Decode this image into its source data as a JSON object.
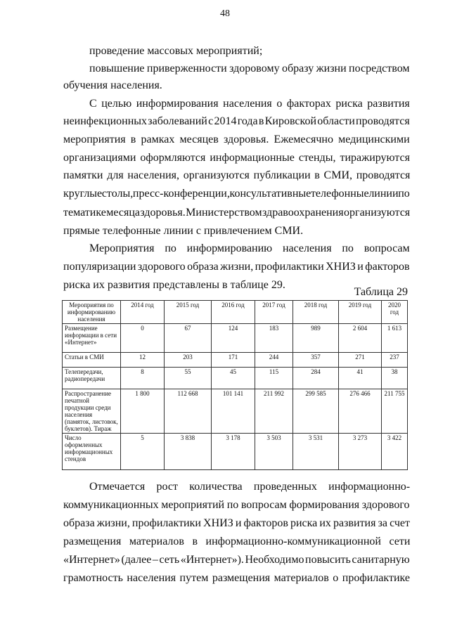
{
  "page_number": "48",
  "lines_top": [
    {
      "text": "проведение массовых мероприятий;",
      "indent": true,
      "justify": false
    },
    {
      "text": "повышение приверженности здоровому образу жизни посредством",
      "indent": true,
      "justify": true
    },
    {
      "text": "обучения населения.",
      "indent": false,
      "justify": false
    },
    {
      "text": "С целью информирования населения о факторах риска развития",
      "indent": true,
      "justify": true
    },
    {
      "text": "неинфекционных заболеваний с 2014 года в Кировской области проводятся",
      "indent": false,
      "justify": true
    },
    {
      "text": "мероприятия в рамках месяцев здоровья. Ежемесячно медицинскими",
      "indent": false,
      "justify": true
    },
    {
      "text": "организациями оформляются информационные стенды, тиражируются",
      "indent": false,
      "justify": true
    },
    {
      "text": "памятки для населения, организуются публикации в СМИ, проводятся",
      "indent": false,
      "justify": true
    },
    {
      "text": "круглые столы, пресс-конференции, консультативные телефонные линии по",
      "indent": false,
      "justify": true
    },
    {
      "text": "тематике месяца здоровья. Министерством здравоохранения организуются",
      "indent": false,
      "justify": true
    },
    {
      "text": "прямые телефонные линии с привлечением СМИ.",
      "indent": false,
      "justify": false
    },
    {
      "text": "Мероприятия по информированию населения по вопросам",
      "indent": true,
      "justify": true
    },
    {
      "text": "популяризации здорового образа жизни, профилактики ХНИЗ и факторов",
      "indent": false,
      "justify": true
    },
    {
      "text": "риска их развития представлены в таблице 29.",
      "indent": false,
      "justify": false
    }
  ],
  "table_caption": "Таблица 29",
  "table": {
    "headers": [
      "Мероприятия по информированию населения",
      "2014 год",
      "2015 год",
      "2016 год",
      "2017 год",
      "2018 год",
      "2019 год",
      "2020 год"
    ],
    "rows": [
      {
        "label": "Размещение информации в сети «Интернет»",
        "values": [
          "0",
          "67",
          "124",
          "183",
          "989",
          "2 604",
          "1 613"
        ]
      },
      {
        "label": "Статьи в СМИ",
        "values": [
          "12",
          "203",
          "171",
          "244",
          "357",
          "271",
          "237"
        ]
      },
      {
        "label": "Телепередачи, радиопередачи",
        "values": [
          "8",
          "55",
          "45",
          "115",
          "284",
          "41",
          "38"
        ]
      },
      {
        "label": "Распространение печатной продукции среди населения (памяток, листовок, буклетов). Тираж",
        "values": [
          "1 800",
          "112 668",
          "101 141",
          "211 992",
          "299 585",
          "276 466",
          "211 755"
        ]
      },
      {
        "label": "Число оформленных информационных стендов",
        "values": [
          "5",
          "3 838",
          "3 178",
          "3 503",
          "3 531",
          "3 273",
          "3 422"
        ]
      }
    ]
  },
  "lines_bottom": [
    {
      "text": "Отмечается рост количества проведенных информационно-",
      "indent": true,
      "justify": true
    },
    {
      "text": "коммуникационных мероприятий по вопросам формирования здорового",
      "indent": false,
      "justify": true
    },
    {
      "text": "образа жизни, профилактики ХНИЗ и факторов риска их развития за счет",
      "indent": false,
      "justify": true
    },
    {
      "text": "размещения материалов в информационно-коммуникационной сети",
      "indent": false,
      "justify": true
    },
    {
      "text": "«Интернет» (далее – сеть «Интернет»). Необходимо повысить санитарную",
      "indent": false,
      "justify": true
    },
    {
      "text": "грамотность населения путем размещения материалов о профилактике",
      "indent": false,
      "justify": true
    }
  ]
}
